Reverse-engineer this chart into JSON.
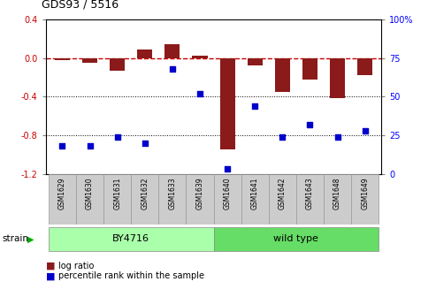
{
  "title": "GDS93 / 5516",
  "samples": [
    "GSM1629",
    "GSM1630",
    "GSM1631",
    "GSM1632",
    "GSM1633",
    "GSM1639",
    "GSM1640",
    "GSM1641",
    "GSM1642",
    "GSM1643",
    "GSM1648",
    "GSM1649"
  ],
  "log_ratio": [
    -0.02,
    -0.05,
    -0.13,
    0.09,
    0.14,
    0.02,
    -0.95,
    -0.08,
    -0.35,
    -0.22,
    -0.42,
    -0.18
  ],
  "percentile_rank": [
    18,
    18,
    24,
    20,
    68,
    52,
    3,
    44,
    24,
    32,
    24,
    28
  ],
  "groups": [
    {
      "label": "BY4716",
      "start": 0,
      "end": 6,
      "color": "#AAFFAA"
    },
    {
      "label": "wild type",
      "start": 6,
      "end": 12,
      "color": "#66DD66"
    }
  ],
  "bar_color": "#8B1A1A",
  "dot_color": "#0000CC",
  "zero_line_color": "#CC0000",
  "ylim_left": [
    -1.2,
    0.4
  ],
  "ylim_right": [
    0,
    100
  ],
  "yticks_left": [
    -1.2,
    -0.8,
    -0.4,
    0.0,
    0.4
  ],
  "yticks_right": [
    0,
    25,
    50,
    75,
    100
  ],
  "grid_lines": [
    -0.4,
    -0.8
  ],
  "background_color": "#ffffff",
  "strain_label": "strain",
  "legend_log_ratio": "log ratio",
  "legend_percentile": "percentile rank within the sample",
  "label_box_color": "#CCCCCC",
  "label_box_edge": "#999999"
}
